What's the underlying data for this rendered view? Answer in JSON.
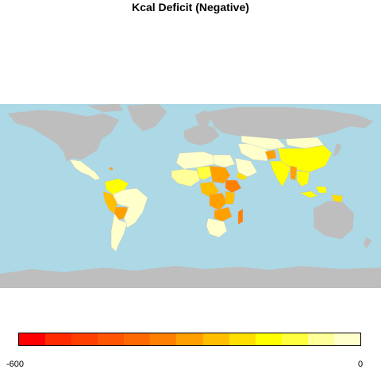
{
  "title": "Kcal Deficit (Negative)",
  "colors": {
    "ocean": "#add8e6",
    "land_no_data": "#bebebe",
    "border": "#ffffff"
  },
  "legend": {
    "min_label": "-600",
    "max_label": "0",
    "colors": [
      "#ff0000",
      "#ff2a00",
      "#ff3f00",
      "#ff5500",
      "#ff6a00",
      "#ff8000",
      "#ff9f00",
      "#ffbf00",
      "#ffdf00",
      "#ffff00",
      "#ffff3f",
      "#ffff99",
      "#ffffcc"
    ]
  },
  "map": {
    "projection": "equirectangular",
    "shaded_regions": [
      {
        "region": "Mexico / Central America",
        "color": "#ffffcc"
      },
      {
        "region": "Caribbean",
        "color": "#ff9f00"
      },
      {
        "region": "Colombia / Venezuela",
        "color": "#ffff00"
      },
      {
        "region": "Peru / Ecuador",
        "color": "#ffbf00"
      },
      {
        "region": "Bolivia",
        "color": "#ff9f00"
      },
      {
        "region": "Brazil",
        "color": "#ffffcc"
      },
      {
        "region": "Argentina / Chile",
        "color": "#ffffcc"
      },
      {
        "region": "West Africa",
        "color": "#ffff99"
      },
      {
        "region": "Sahel",
        "color": "#ffff3f"
      },
      {
        "region": "Chad / Sudan",
        "color": "#ff9f00"
      },
      {
        "region": "Ethiopia",
        "color": "#ff8000"
      },
      {
        "region": "Central Africa",
        "color": "#ffbf00"
      },
      {
        "region": "DR Congo",
        "color": "#ff9f00"
      },
      {
        "region": "Zambia / Zimbabwe",
        "color": "#ff9f00"
      },
      {
        "region": "Madagascar",
        "color": "#ff8000"
      },
      {
        "region": "Southern Africa",
        "color": "#ffffcc"
      },
      {
        "region": "Morocco / Algeria",
        "color": "#ffffcc"
      },
      {
        "region": "Egypt / Arabia",
        "color": "#ffffcc"
      },
      {
        "region": "Yemen",
        "color": "#ffdf00"
      },
      {
        "region": "Iran",
        "color": "#ffffcc"
      },
      {
        "region": "Afghanistan",
        "color": "#ff9f00"
      },
      {
        "region": "Central Asia",
        "color": "#ffffcc"
      },
      {
        "region": "India",
        "color": "#ffff00"
      },
      {
        "region": "China",
        "color": "#ffff00"
      },
      {
        "region": "Mongolia",
        "color": "#ffffcc"
      },
      {
        "region": "Myanmar",
        "color": "#ff9f00"
      },
      {
        "region": "Southeast Asia",
        "color": "#ffff00"
      },
      {
        "region": "Indonesia",
        "color": "#ffff00"
      },
      {
        "region": "Papua New Guinea",
        "color": "#ffdf00"
      }
    ]
  }
}
